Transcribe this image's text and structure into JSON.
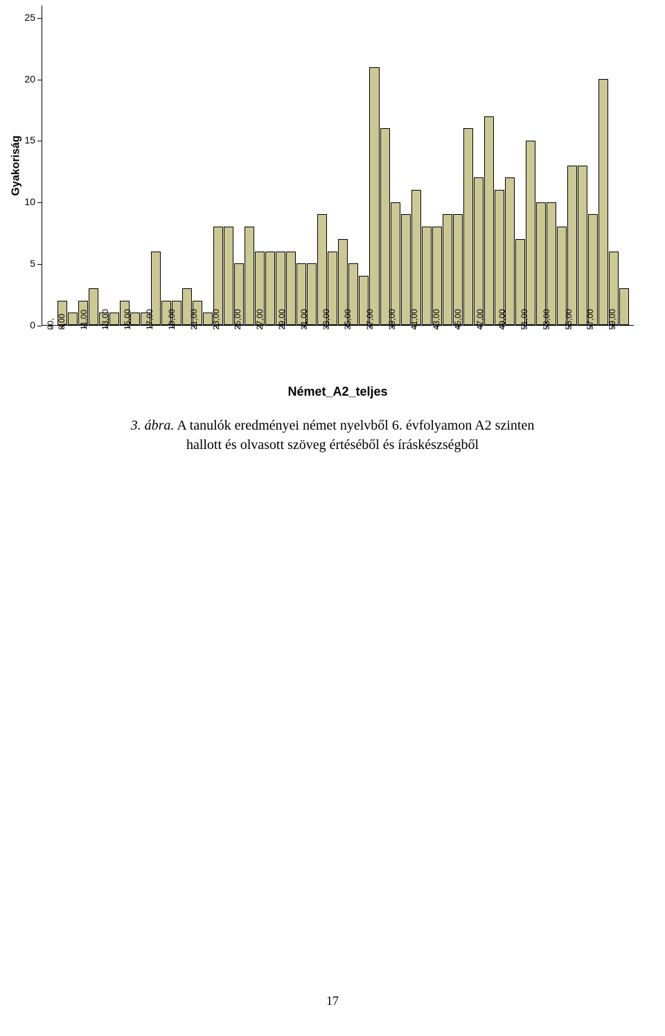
{
  "chart": {
    "type": "histogram",
    "y_label": "Gyakoriság",
    "y_label_fontsize": 16,
    "x_label": "Német_A2_teljes",
    "x_label_fontsize": 18,
    "ylim_min": 0,
    "ylim_max": 26,
    "y_ticks": [
      0,
      5,
      10,
      15,
      20,
      25
    ],
    "bar_color": "#cbc894",
    "bar_border_color": "#000000",
    "plot_border_color": "#000000",
    "background_color": "#ffffff",
    "label_fontsize": 14,
    "x_tick_fontsize": 12,
    "x_tick_rotation": -90,
    "categories": [
      ",00",
      "8,00",
      "",
      "11,00",
      "",
      "13,00",
      "",
      "15,00",
      "",
      "17,00",
      "",
      "19,00",
      "",
      "21,00",
      "",
      "23,00",
      "",
      "25,00",
      "",
      "27,00",
      "",
      "29,00",
      "",
      "31,00",
      "",
      "33,00",
      "",
      "35,00",
      "",
      "37,00",
      "",
      "39,00",
      "",
      "41,00",
      "",
      "43,00",
      "",
      "45,00",
      "",
      "47,00",
      "",
      "49,00",
      "",
      "51,00",
      "",
      "53,00",
      "",
      "55,00",
      "",
      "57,00",
      "",
      "59,00",
      ""
    ],
    "values": [
      0,
      2,
      1,
      2,
      3,
      1,
      1,
      2,
      1,
      1,
      6,
      2,
      2,
      3,
      2,
      1,
      8,
      8,
      5,
      8,
      6,
      6,
      6,
      6,
      5,
      5,
      9,
      6,
      7,
      5,
      4,
      21,
      16,
      10,
      9,
      11,
      8,
      8,
      9,
      9,
      16,
      12,
      17,
      11,
      12,
      7,
      15,
      10,
      10,
      8,
      13,
      13,
      9,
      20,
      6,
      3
    ]
  },
  "caption": {
    "label": "3.  ábra.",
    "line1": "A tanulók eredményei német nyelvből 6. évfolyamon A2 szinten",
    "line2": "hallott  és olvasott szöveg értéséből és íráskészségből"
  },
  "page_number": "17"
}
